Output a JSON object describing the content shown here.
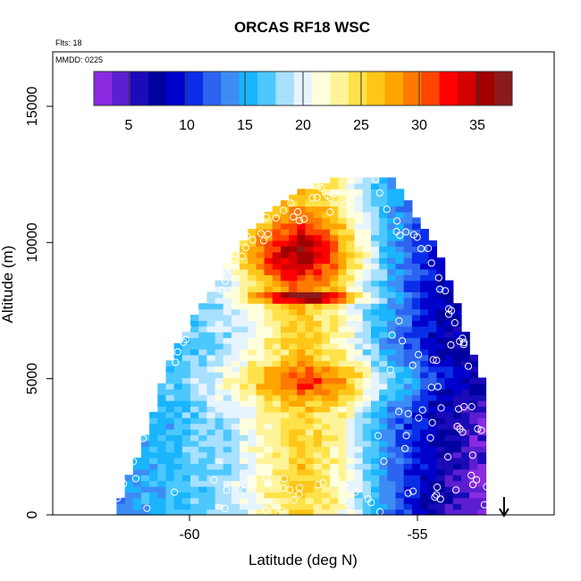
{
  "chart_data": {
    "type": "heatmap",
    "title": "ORCAS RF18 WSC",
    "annotations": {
      "flights": "Flts: 18",
      "date": "MMDD: 0225"
    },
    "xlabel": "Latitude (deg N)",
    "ylabel": "Altitude (m)",
    "xlim": [
      -63,
      -52
    ],
    "ylim": [
      0,
      17000
    ],
    "x_ticks": [
      -60,
      -55
    ],
    "y_ticks": [
      0,
      5000,
      10000,
      15000
    ],
    "x_tick_labels": [
      "-60",
      "-55"
    ],
    "y_tick_labels": [
      "0",
      "5000",
      "10000",
      "15000"
    ],
    "colorbar": {
      "range": [
        2,
        38
      ],
      "ticks": [
        5,
        10,
        15,
        20,
        25,
        30,
        35
      ],
      "tick_labels": [
        "5",
        "10",
        "15",
        "20",
        "25",
        "30",
        "35"
      ],
      "colors": [
        "#8a2be2",
        "#5b1fd0",
        "#1a0ab8",
        "#0000a0",
        "#0000cd",
        "#0a2ee8",
        "#2c64f0",
        "#3d8cf5",
        "#1ab4ff",
        "#4cc8ff",
        "#a8e0ff",
        "#e6f4ff",
        "#ffffdd",
        "#fff49a",
        "#ffe24a",
        "#ffc61a",
        "#ffa500",
        "#ff7a00",
        "#ff4500",
        "#ff0000",
        "#d40000",
        "#a00000",
        "#8b1a1a"
      ]
    },
    "arrow": {
      "x": -53.1,
      "label": ""
    },
    "profiles": [
      {
        "lat": -61.6,
        "alt_top": 600,
        "mean": 14
      },
      {
        "lat": -61.2,
        "alt_top": 2200,
        "mean": 15
      },
      {
        "lat": -60.5,
        "alt_top": 5600,
        "mean": 16
      },
      {
        "lat": -60.0,
        "alt_top": 7200,
        "mean": 17
      },
      {
        "lat": -59.2,
        "alt_top": 9200,
        "mean": 19
      },
      {
        "lat": -58.5,
        "alt_top": 10800,
        "mean": 22
      },
      {
        "lat": -57.7,
        "alt_top": 11800,
        "mean": 26
      },
      {
        "lat": -56.8,
        "alt_top": 12300,
        "mean": 23
      },
      {
        "lat": -55.7,
        "alt_top": 12400,
        "mean": 15
      },
      {
        "lat": -54.6,
        "alt_top": 9500,
        "mean": 10
      },
      {
        "lat": -53.6,
        "alt_top": 4500,
        "mean": 8
      }
    ]
  }
}
